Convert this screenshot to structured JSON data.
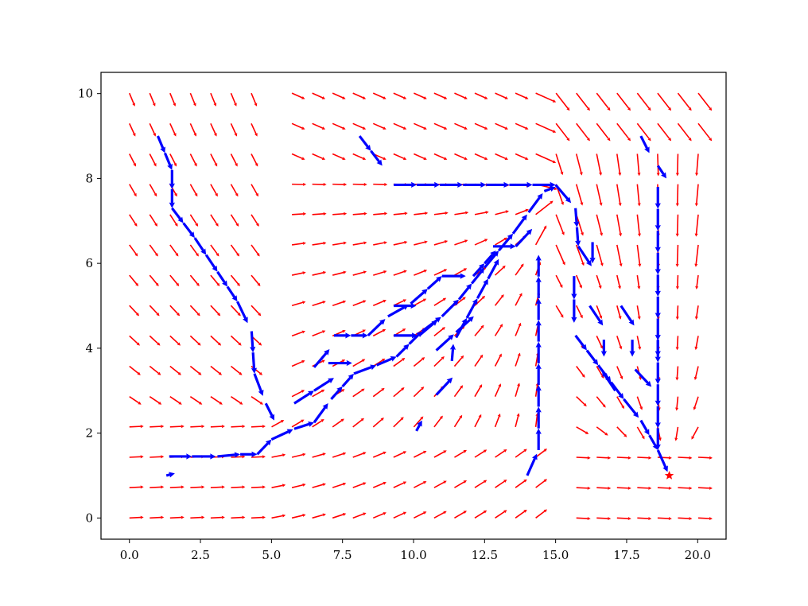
{
  "chart_data": {
    "type": "quiver",
    "title": "",
    "xlabel": "",
    "ylabel": "",
    "xlim": [
      -1.0,
      21.0
    ],
    "ylim": [
      -0.5,
      10.5
    ],
    "xticks": [
      0.0,
      2.5,
      5.0,
      7.5,
      10.0,
      12.5,
      15.0,
      17.5,
      20.0
    ],
    "xtick_labels": [
      "0.0",
      "2.5",
      "5.0",
      "7.5",
      "10.0",
      "12.5",
      "15.0",
      "17.5",
      "20.0"
    ],
    "yticks": [
      0,
      2,
      4,
      6,
      8,
      10
    ],
    "ytick_labels": [
      "0",
      "2",
      "4",
      "6",
      "8",
      "10"
    ],
    "grid": false,
    "field": {
      "name": "vector field",
      "color": "#ff0000",
      "x_start": 0.0,
      "x_step": 0.715,
      "y_start": 0.0,
      "y_step": 0.715,
      "columns": 29,
      "rows": 15,
      "obstacles": [
        {
          "x": [
            4.6,
            5.5
          ],
          "y": [
            2.5,
            10.5
          ]
        },
        {
          "x": [
            14.6,
            15.5
          ],
          "y": [
            -0.5,
            5.0
          ]
        }
      ],
      "goal": [
        19.0,
        1.0
      ],
      "attractor": [
        15.0,
        7.7
      ]
    },
    "trajectories": {
      "name": "paths",
      "color": "#0000ff",
      "paths": [
        [
          [
            1.0,
            9.0
          ],
          [
            1.5,
            8.2
          ],
          [
            1.5,
            7.3
          ],
          [
            2.3,
            6.6
          ],
          [
            3.1,
            5.8
          ],
          [
            3.8,
            5.1
          ],
          [
            4.3,
            4.4
          ],
          [
            4.4,
            3.4
          ],
          [
            4.8,
            2.7
          ],
          [
            5.1,
            2.3
          ]
        ],
        [
          [
            1.3,
            1.0
          ],
          [
            1.6,
            1.05
          ]
        ],
        [
          [
            1.4,
            1.45
          ],
          [
            2.2,
            1.45
          ],
          [
            3.1,
            1.45
          ],
          [
            3.9,
            1.5
          ],
          [
            4.5,
            1.5
          ],
          [
            5.0,
            1.85
          ],
          [
            5.8,
            2.1
          ],
          [
            6.5,
            2.25
          ],
          [
            7.1,
            2.8
          ],
          [
            7.9,
            3.4
          ],
          [
            8.7,
            3.6
          ],
          [
            9.4,
            3.8
          ],
          [
            10.3,
            4.4
          ],
          [
            11.0,
            4.75
          ],
          [
            11.6,
            5.15
          ],
          [
            12.5,
            5.9
          ],
          [
            13.5,
            6.7
          ],
          [
            14.6,
            7.7
          ],
          [
            15.0,
            7.8
          ]
        ],
        [
          [
            5.8,
            2.7
          ],
          [
            6.5,
            3.0
          ],
          [
            7.2,
            3.3
          ]
        ],
        [
          [
            7.0,
            3.65
          ],
          [
            7.9,
            3.65
          ]
        ],
        [
          [
            6.5,
            3.55
          ],
          [
            7.2,
            4.1
          ]
        ],
        [
          [
            7.2,
            4.3
          ],
          [
            8.4,
            4.3
          ],
          [
            9.1,
            4.75
          ],
          [
            9.9,
            5.05
          ],
          [
            10.5,
            5.4
          ],
          [
            11.0,
            5.7
          ],
          [
            12.1,
            5.7
          ],
          [
            12.9,
            6.3
          ]
        ],
        [
          [
            9.3,
            4.3
          ],
          [
            10.2,
            4.3
          ],
          [
            11.0,
            4.75
          ]
        ],
        [
          [
            9.3,
            5.0
          ],
          [
            10.1,
            5.0
          ]
        ],
        [
          [
            10.8,
            2.9
          ],
          [
            11.5,
            3.4
          ]
        ],
        [
          [
            10.1,
            2.05
          ],
          [
            10.3,
            2.3
          ]
        ],
        [
          [
            11.35,
            3.7
          ],
          [
            11.4,
            4.1
          ]
        ],
        [
          [
            10.8,
            3.95
          ],
          [
            12.2,
            4.8
          ]
        ],
        [
          [
            11.5,
            4.25
          ],
          [
            13.0,
            6.1
          ]
        ],
        [
          [
            12.8,
            6.4
          ],
          [
            13.6,
            6.4
          ],
          [
            14.3,
            6.9
          ]
        ],
        [
          [
            14.0,
            1.0
          ],
          [
            14.4,
            1.6
          ],
          [
            14.4,
            6.2
          ]
        ],
        [
          [
            8.1,
            9.0
          ],
          [
            8.9,
            8.3
          ]
        ],
        [
          [
            9.3,
            7.85
          ],
          [
            15.0,
            7.85
          ],
          [
            15.7,
            7.3
          ],
          [
            15.8,
            6.4
          ],
          [
            16.3,
            5.9
          ]
        ],
        [
          [
            15.65,
            5.7
          ],
          [
            15.65,
            4.6
          ]
        ],
        [
          [
            15.7,
            4.3
          ],
          [
            16.5,
            3.6
          ],
          [
            17.4,
            2.8
          ],
          [
            18.0,
            2.3
          ],
          [
            18.6,
            1.6
          ],
          [
            19.0,
            1.0
          ]
        ],
        [
          [
            16.3,
            6.5
          ],
          [
            16.3,
            6.0
          ]
        ],
        [
          [
            16.2,
            5.0
          ],
          [
            16.8,
            4.4
          ]
        ],
        [
          [
            16.7,
            4.2
          ],
          [
            16.7,
            3.8
          ]
        ],
        [
          [
            17.1,
            3.0
          ],
          [
            16.5,
            3.6
          ]
        ],
        [
          [
            17.3,
            5.0
          ],
          [
            17.8,
            4.5
          ]
        ],
        [
          [
            17.7,
            4.2
          ],
          [
            17.7,
            3.8
          ]
        ],
        [
          [
            17.8,
            3.5
          ],
          [
            18.5,
            3.0
          ]
        ],
        [
          [
            18.6,
            4.2
          ],
          [
            18.6,
            3.8
          ]
        ],
        [
          [
            18.0,
            9.0
          ],
          [
            18.3,
            8.6
          ]
        ],
        [
          [
            18.6,
            8.3
          ],
          [
            18.9,
            8.0
          ]
        ],
        [
          [
            18.6,
            7.8
          ],
          [
            18.6,
            1.6
          ]
        ]
      ]
    },
    "goal_marker": {
      "x": 19.0,
      "y": 1.0,
      "color": "#ff0000",
      "symbol": "star"
    }
  }
}
